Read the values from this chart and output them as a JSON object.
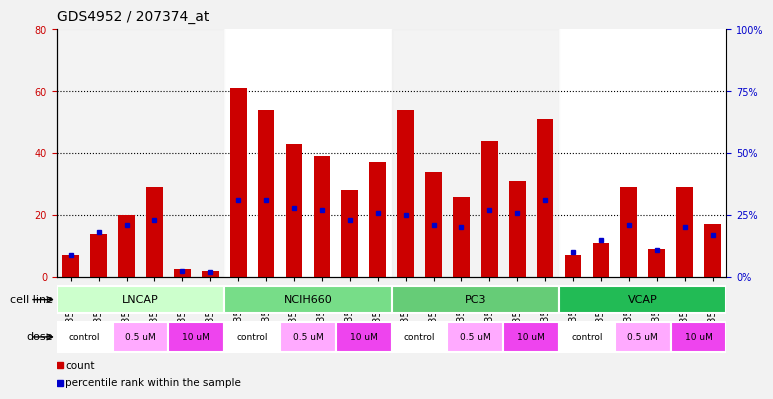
{
  "title": "GDS4952 / 207374_at",
  "samples": [
    "GSM1359772",
    "GSM1359773",
    "GSM1359774",
    "GSM1359775",
    "GSM1359776",
    "GSM1359777",
    "GSM1359760",
    "GSM1359761",
    "GSM1359762",
    "GSM1359763",
    "GSM1359764",
    "GSM1359765",
    "GSM1359778",
    "GSM1359779",
    "GSM1359780",
    "GSM1359781",
    "GSM1359782",
    "GSM1359783",
    "GSM1359766",
    "GSM1359767",
    "GSM1359768",
    "GSM1359769",
    "GSM1359770",
    "GSM1359771"
  ],
  "counts": [
    7,
    14,
    20,
    29,
    2.5,
    2,
    61,
    54,
    43,
    39,
    28,
    37,
    54,
    34,
    26,
    44,
    31,
    51,
    7,
    11,
    29,
    9,
    29,
    17
  ],
  "percentiles": [
    9,
    18,
    21,
    23,
    2.5,
    2,
    31,
    31,
    28,
    27,
    23,
    26,
    25,
    21,
    20,
    27,
    26,
    31,
    10,
    15,
    21,
    11,
    20,
    17
  ],
  "cell_lines": [
    "LNCAP",
    "NCIH660",
    "PC3",
    "VCAP"
  ],
  "cell_line_spans": [
    [
      0,
      5
    ],
    [
      6,
      11
    ],
    [
      12,
      17
    ],
    [
      18,
      23
    ]
  ],
  "cell_line_colors": [
    "#ccffcc",
    "#77dd88",
    "#66cc77",
    "#22bb55"
  ],
  "dose_labels": [
    "control",
    "0.5 uM",
    "10 uM"
  ],
  "dose_colors_per_group": [
    [
      "#ffffff",
      "#ffaaff",
      "#ee44ee"
    ],
    [
      "#ffffff",
      "#ffaaff",
      "#ee44ee"
    ],
    [
      "#ffffff",
      "#ffaaff",
      "#ee44ee"
    ],
    [
      "#ffffff",
      "#ffaaff",
      "#ee44ee"
    ]
  ],
  "bar_color": "#cc0000",
  "dot_color": "#0000cc",
  "ylim_left": [
    0,
    80
  ],
  "ylim_right": [
    0,
    100
  ],
  "yticks_left": [
    0,
    20,
    40,
    60,
    80
  ],
  "ytick_labels_left": [
    "0",
    "20",
    "40",
    "60",
    "80"
  ],
  "yticks_right_vals": [
    0,
    25,
    50,
    75,
    100
  ],
  "ytick_labels_right": [
    "0%",
    "25%",
    "50%",
    "75%",
    "100%"
  ],
  "background_color": "#f2f2f2",
  "plot_bg_color": "#ffffff",
  "grid_color": "#000000",
  "title_fontsize": 10,
  "tick_fontsize": 7,
  "label_fontsize": 8,
  "bar_width": 0.6
}
